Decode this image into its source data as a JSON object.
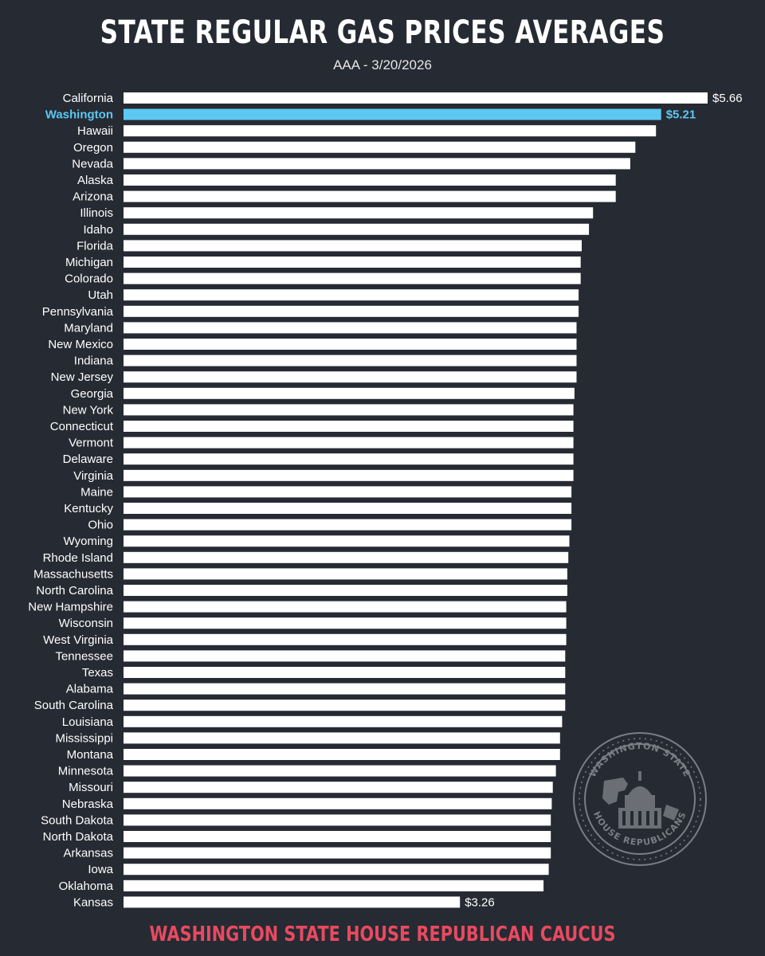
{
  "title": "STATE REGULAR GAS PRICES AVERAGES",
  "subtitle": "AAA - 3/20/2026",
  "footer": "WASHINGTON STATE HOUSE REPUBLICAN CAUCUS",
  "seal": {
    "top_text": "WASHINGTON STATE",
    "bottom_text": "HOUSE REPUBLICANS"
  },
  "colors": {
    "background": "#262a33",
    "bar": "#ffffff",
    "highlight": "#5cc8f2",
    "footer": "#e84a5f"
  },
  "chart_data": {
    "type": "bar",
    "orientation": "horizontal",
    "title": "STATE REGULAR GAS PRICES AVERAGES",
    "subtitle": "AAA - 3/20/2026",
    "xlabel": "",
    "ylabel": "",
    "grid": false,
    "highlight": "Washington",
    "labeled_categories": [
      "California",
      "Washington",
      "Kansas"
    ],
    "value_labels": {
      "California": "$5.66",
      "Washington": "$5.21",
      "Kansas": "$3.26"
    },
    "categories": [
      "California",
      "Washington",
      "Hawaii",
      "Oregon",
      "Nevada",
      "Alaska",
      "Arizona",
      "Illinois",
      "Idaho",
      "Florida",
      "Michigan",
      "Colorado",
      "Utah",
      "Pennsylvania",
      "Maryland",
      "New Mexico",
      "Indiana",
      "New Jersey",
      "Georgia",
      "New York",
      "Connecticut",
      "Vermont",
      "Delaware",
      "Virginia",
      "Maine",
      "Kentucky",
      "Ohio",
      "Wyoming",
      "Rhode Island",
      "Massachusetts",
      "North Carolina",
      "New Hampshire",
      "Wisconsin",
      "West Virginia",
      "Tennessee",
      "Texas",
      "Alabama",
      "South Carolina",
      "Louisiana",
      "Mississippi",
      "Montana",
      "Minnesota",
      "Missouri",
      "Nebraska",
      "South Dakota",
      "North Dakota",
      "Arkansas",
      "Iowa",
      "Oklahoma",
      "Kansas"
    ],
    "values": [
      5.66,
      5.21,
      5.16,
      4.96,
      4.91,
      4.77,
      4.77,
      4.55,
      4.51,
      4.44,
      4.43,
      4.43,
      4.41,
      4.41,
      4.39,
      4.39,
      4.39,
      4.39,
      4.37,
      4.36,
      4.36,
      4.36,
      4.36,
      4.36,
      4.34,
      4.34,
      4.34,
      4.32,
      4.31,
      4.3,
      4.3,
      4.29,
      4.29,
      4.29,
      4.28,
      4.28,
      4.28,
      4.28,
      4.25,
      4.23,
      4.23,
      4.19,
      4.16,
      4.15,
      4.14,
      4.14,
      4.14,
      4.12,
      4.07,
      3.26
    ]
  }
}
